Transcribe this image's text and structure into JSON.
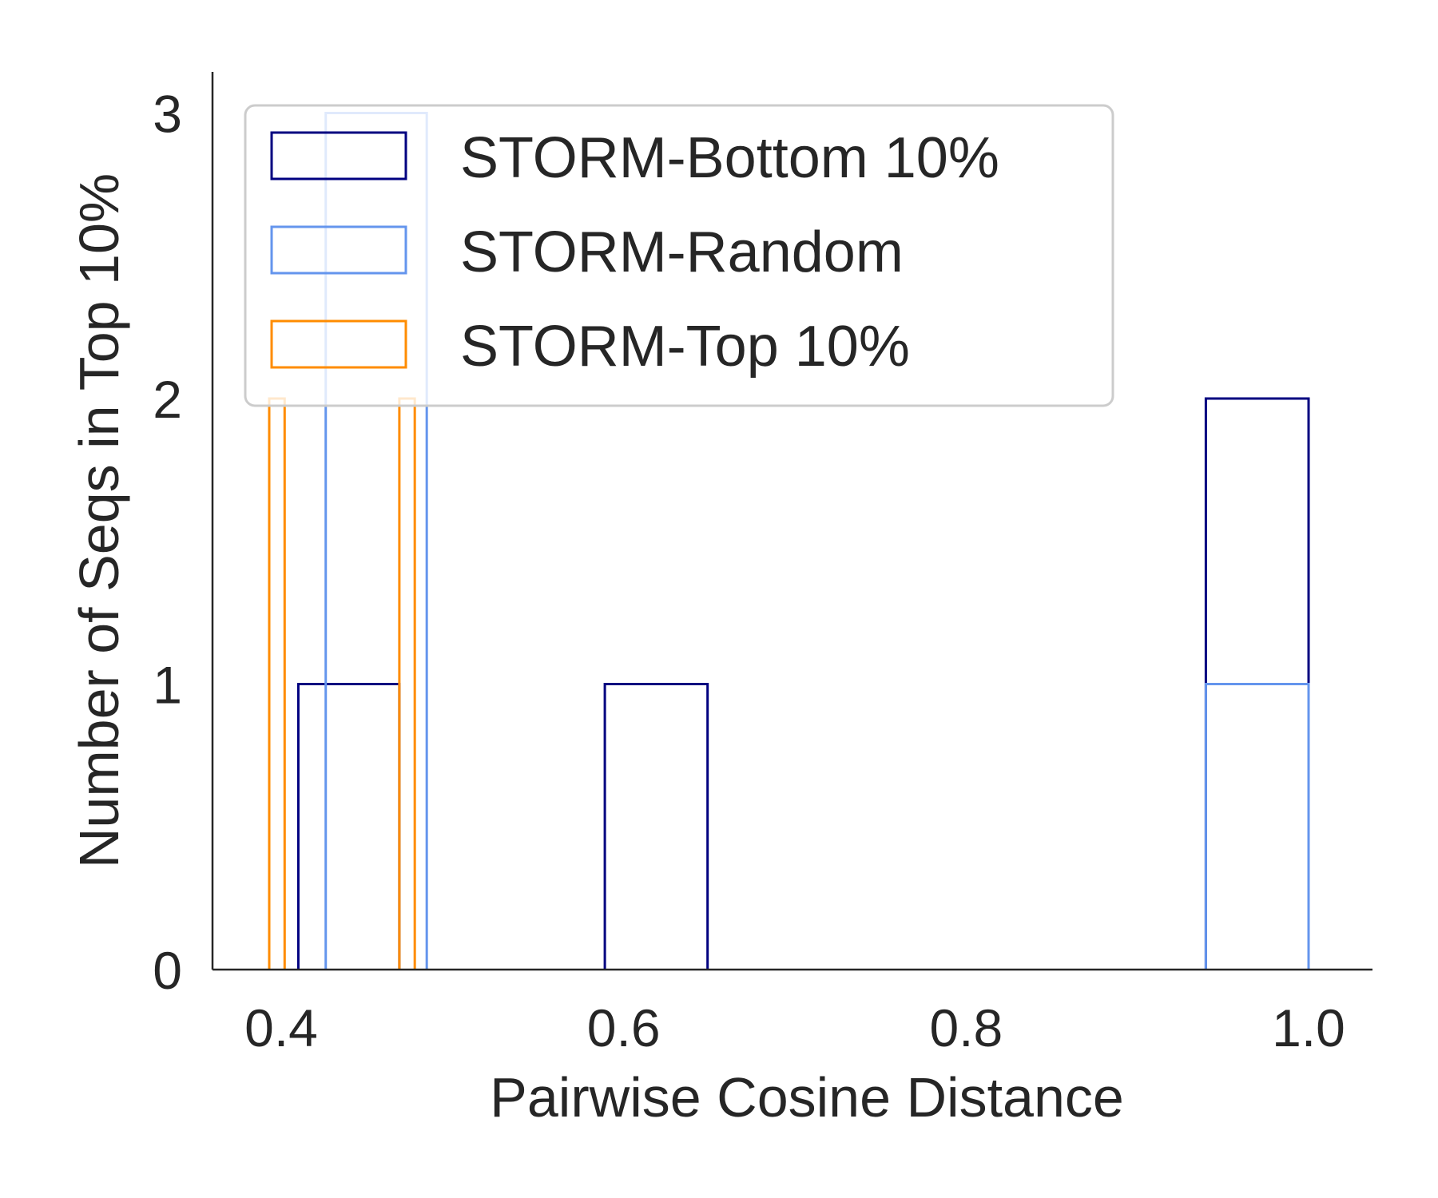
{
  "chart_data": {
    "type": "histogram",
    "xlabel": "Pairwise Cosine Distance",
    "ylabel": "Number of Seqs in Top 10%",
    "xlim": [
      0.363,
      1.043
    ],
    "ylim": [
      0,
      3.15
    ],
    "xticks": [
      0.4,
      0.6,
      0.8,
      1.0
    ],
    "xtick_labels": [
      "0.4",
      "0.6",
      "0.8",
      "1.0"
    ],
    "yticks": [
      0,
      1,
      2,
      3
    ],
    "ytick_labels": [
      "0",
      "1",
      "2",
      "3"
    ],
    "grid": false,
    "legend_position": "top-left",
    "series": [
      {
        "name": "STORM-Bottom 10%",
        "color": "#000080",
        "bins": [
          {
            "x0": 0.41,
            "x1": 0.469,
            "count": 1
          },
          {
            "x0": 0.589,
            "x1": 0.649,
            "count": 1
          },
          {
            "x0": 0.94,
            "x1": 1.0,
            "count": 2
          }
        ]
      },
      {
        "name": "STORM-Random",
        "color": "#6495ED",
        "bins": [
          {
            "x0": 0.426,
            "x1": 0.485,
            "count": 3
          },
          {
            "x0": 0.94,
            "x1": 1.0,
            "count": 1
          }
        ]
      },
      {
        "name": "STORM-Top 10%",
        "color": "#FF8C00",
        "bins": [
          {
            "x0": 0.393,
            "x1": 0.402,
            "count": 2
          },
          {
            "x0": 0.469,
            "x1": 0.478,
            "count": 2
          }
        ]
      }
    ]
  }
}
